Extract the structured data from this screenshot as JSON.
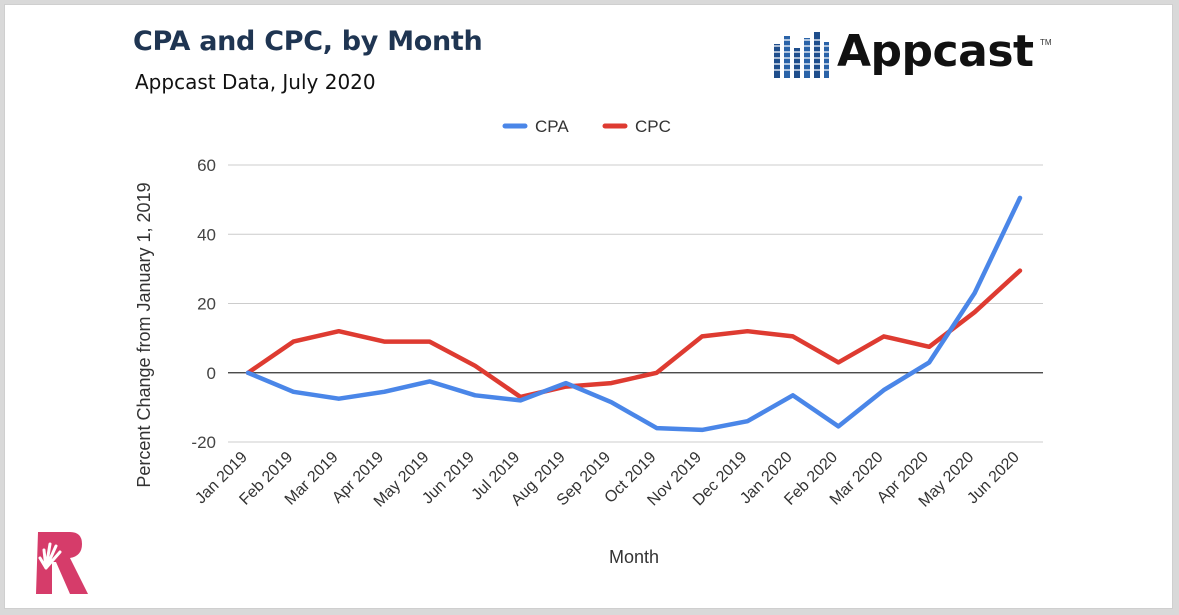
{
  "header": {
    "title": "CPA and CPC, by Month",
    "subtitle": "Appcast Data, July 2020",
    "logo_text": "Appcast",
    "logo_tm": "TM",
    "logo_color": "#1f4e8c"
  },
  "chart_data": {
    "type": "line",
    "title": "CPA and CPC, by Month",
    "subtitle": "Appcast Data, July 2020",
    "xlabel": "Month",
    "ylabel": "Percent Change from January 1, 2019",
    "categories": [
      "Jan 2019",
      "Feb 2019",
      "Mar 2019",
      "Apr 2019",
      "May 2019",
      "Jun 2019",
      "Jul 2019",
      "Aug 2019",
      "Sep 2019",
      "Oct 2019",
      "Nov 2019",
      "Dec 2019",
      "Jan 2020",
      "Feb 2020",
      "Mar 2020",
      "Apr 2020",
      "May 2020",
      "Jun 2020"
    ],
    "yticks": [
      -20,
      0,
      20,
      40,
      60
    ],
    "ylim": [
      -20,
      60
    ],
    "grid": true,
    "legend_position": "top-center",
    "series": [
      {
        "name": "CPA",
        "color": "#4a86e8",
        "values": [
          0,
          -5.5,
          -7.5,
          -5.5,
          -2.5,
          -6.5,
          -8,
          -3,
          -8.5,
          -16,
          -16.5,
          -14,
          -6.5,
          -15.5,
          -5,
          3,
          23,
          50.5
        ]
      },
      {
        "name": "CPC",
        "color": "#de3b31",
        "values": [
          0,
          9,
          12,
          9,
          9,
          2,
          -7,
          -4,
          -3,
          0,
          10.5,
          12,
          10.5,
          3,
          10.5,
          7.5,
          17.5,
          29.5
        ]
      }
    ]
  }
}
